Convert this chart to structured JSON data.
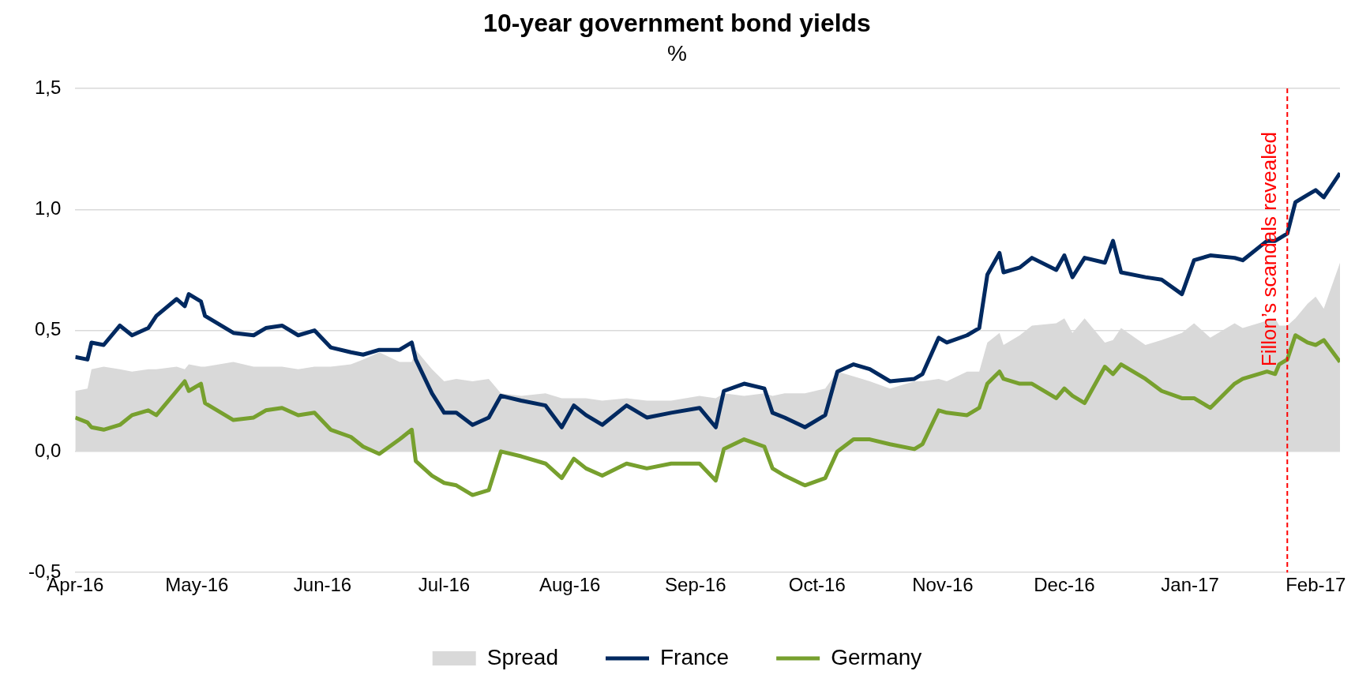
{
  "chart_data": {
    "type": "line",
    "title": "10-year government bond yields",
    "subtitle": "%",
    "x": [
      "2016-04-01",
      "2016-04-04",
      "2016-04-05",
      "2016-04-08",
      "2016-04-12",
      "2016-04-15",
      "2016-04-19",
      "2016-04-21",
      "2016-04-26",
      "2016-04-28",
      "2016-04-29",
      "2016-05-02",
      "2016-05-03",
      "2016-05-10",
      "2016-05-15",
      "2016-05-18",
      "2016-05-22",
      "2016-05-26",
      "2016-05-30",
      "2016-06-03",
      "2016-06-08",
      "2016-06-11",
      "2016-06-15",
      "2016-06-20",
      "2016-06-23",
      "2016-06-24",
      "2016-06-28",
      "2016-07-01",
      "2016-07-04",
      "2016-07-08",
      "2016-07-12",
      "2016-07-15",
      "2016-07-20",
      "2016-07-26",
      "2016-07-30",
      "2016-08-02",
      "2016-08-05",
      "2016-08-09",
      "2016-08-15",
      "2016-08-20",
      "2016-08-26",
      "2016-09-02",
      "2016-09-06",
      "2016-09-08",
      "2016-09-13",
      "2016-09-18",
      "2016-09-20",
      "2016-09-23",
      "2016-09-28",
      "2016-10-03",
      "2016-10-06",
      "2016-10-10",
      "2016-10-14",
      "2016-10-19",
      "2016-10-25",
      "2016-10-27",
      "2016-10-31",
      "2016-11-02",
      "2016-11-07",
      "2016-11-10",
      "2016-11-12",
      "2016-11-15",
      "2016-11-16",
      "2016-11-20",
      "2016-11-23",
      "2016-11-29",
      "2016-12-01",
      "2016-12-03",
      "2016-12-06",
      "2016-12-11",
      "2016-12-13",
      "2016-12-15",
      "2016-12-21",
      "2016-12-25",
      "2016-12-30",
      "2017-01-02",
      "2017-01-06",
      "2017-01-12",
      "2017-01-14",
      "2017-01-20",
      "2017-01-22",
      "2017-01-23",
      "2017-01-25",
      "2017-01-27",
      "2017-01-30",
      "2017-02-01",
      "2017-02-03",
      "2017-02-07"
    ],
    "series": [
      {
        "name": "Spread",
        "type": "area",
        "color": "#d9d9d9",
        "values": [
          0.25,
          0.26,
          0.34,
          0.35,
          0.34,
          0.33,
          0.34,
          0.34,
          0.35,
          0.34,
          0.36,
          0.35,
          0.35,
          0.37,
          0.35,
          0.35,
          0.35,
          0.34,
          0.35,
          0.35,
          0.36,
          0.38,
          0.41,
          0.37,
          0.37,
          0.42,
          0.34,
          0.29,
          0.3,
          0.29,
          0.3,
          0.24,
          0.23,
          0.24,
          0.22,
          0.22,
          0.22,
          0.21,
          0.22,
          0.21,
          0.21,
          0.23,
          0.22,
          0.24,
          0.23,
          0.24,
          0.23,
          0.24,
          0.24,
          0.26,
          0.33,
          0.31,
          0.29,
          0.26,
          0.29,
          0.29,
          0.3,
          0.29,
          0.33,
          0.33,
          0.45,
          0.49,
          0.44,
          0.48,
          0.52,
          0.53,
          0.55,
          0.49,
          0.55,
          0.45,
          0.46,
          0.51,
          0.44,
          0.46,
          0.49,
          0.53,
          0.47,
          0.53,
          0.51,
          0.54,
          0.55,
          0.52,
          0.52,
          0.55,
          0.61,
          0.64,
          0.59,
          0.78
        ]
      },
      {
        "name": "France",
        "type": "line",
        "color": "#002960",
        "values": [
          0.39,
          0.38,
          0.45,
          0.44,
          0.52,
          0.48,
          0.51,
          0.56,
          0.63,
          0.6,
          0.65,
          0.62,
          0.56,
          0.49,
          0.48,
          0.51,
          0.52,
          0.48,
          0.5,
          0.43,
          0.41,
          0.4,
          0.42,
          0.42,
          0.45,
          0.38,
          0.24,
          0.16,
          0.16,
          0.11,
          0.14,
          0.23,
          0.21,
          0.19,
          0.1,
          0.19,
          0.15,
          0.11,
          0.19,
          0.14,
          0.16,
          0.18,
          0.1,
          0.25,
          0.28,
          0.26,
          0.16,
          0.14,
          0.1,
          0.15,
          0.33,
          0.36,
          0.34,
          0.29,
          0.3,
          0.32,
          0.47,
          0.45,
          0.48,
          0.51,
          0.73,
          0.82,
          0.74,
          0.76,
          0.8,
          0.75,
          0.81,
          0.72,
          0.8,
          0.78,
          0.87,
          0.74,
          0.72,
          0.71,
          0.65,
          0.79,
          0.81,
          0.8,
          0.79,
          0.87,
          0.87,
          0.88,
          0.9,
          1.03,
          1.06,
          1.08,
          1.05,
          1.15
        ]
      },
      {
        "name": "Germany",
        "type": "line",
        "color": "#77a02e",
        "values": [
          0.14,
          0.12,
          0.1,
          0.09,
          0.11,
          0.15,
          0.17,
          0.15,
          0.25,
          0.29,
          0.25,
          0.28,
          0.2,
          0.13,
          0.14,
          0.17,
          0.18,
          0.15,
          0.16,
          0.09,
          0.06,
          0.02,
          -0.01,
          0.05,
          0.09,
          -0.04,
          -0.1,
          -0.13,
          -0.14,
          -0.18,
          -0.16,
          0.0,
          -0.02,
          -0.05,
          -0.11,
          -0.03,
          -0.07,
          -0.1,
          -0.05,
          -0.07,
          -0.05,
          -0.05,
          -0.12,
          0.01,
          0.05,
          0.02,
          -0.07,
          -0.1,
          -0.14,
          -0.11,
          0.0,
          0.05,
          0.05,
          0.03,
          0.01,
          0.03,
          0.17,
          0.16,
          0.15,
          0.18,
          0.28,
          0.33,
          0.3,
          0.28,
          0.28,
          0.22,
          0.26,
          0.23,
          0.2,
          0.35,
          0.32,
          0.36,
          0.3,
          0.25,
          0.22,
          0.22,
          0.18,
          0.28,
          0.3,
          0.33,
          0.32,
          0.36,
          0.38,
          0.48,
          0.45,
          0.44,
          0.46,
          0.37
        ]
      }
    ],
    "xlim": [
      "2016-04-01",
      "2017-02-07"
    ],
    "xticks": [
      {
        "value": "2016-04-01",
        "label": "Apr-16"
      },
      {
        "value": "2016-05-01",
        "label": "May-16"
      },
      {
        "value": "2016-06-01",
        "label": "Jun-16"
      },
      {
        "value": "2016-07-01",
        "label": "Jul-16"
      },
      {
        "value": "2016-08-01",
        "label": "Aug-16"
      },
      {
        "value": "2016-09-01",
        "label": "Sep-16"
      },
      {
        "value": "2016-10-01",
        "label": "Oct-16"
      },
      {
        "value": "2016-11-01",
        "label": "Nov-16"
      },
      {
        "value": "2016-12-01",
        "label": "Dec-16"
      },
      {
        "value": "2017-01-01",
        "label": "Jan-17"
      },
      {
        "value": "2017-02-01",
        "label": "Feb-17"
      }
    ],
    "ylim": [
      -0.5,
      1.5
    ],
    "yticks": [
      {
        "value": -0.5,
        "label": "-0,5"
      },
      {
        "value": 0,
        "label": "0,0"
      },
      {
        "value": 0.5,
        "label": "0,5"
      },
      {
        "value": 1,
        "label": "1,0"
      },
      {
        "value": 1.5,
        "label": "1,5"
      }
    ],
    "ref_lines": [
      {
        "axis": "x",
        "value": "2017-01-25",
        "label": "Fillon’s scandals revealed",
        "color": "#ff0000",
        "line_style": "dashed"
      }
    ],
    "grid": "y",
    "legend": "bottom",
    "marker": "none",
    "line_style": "solid"
  }
}
